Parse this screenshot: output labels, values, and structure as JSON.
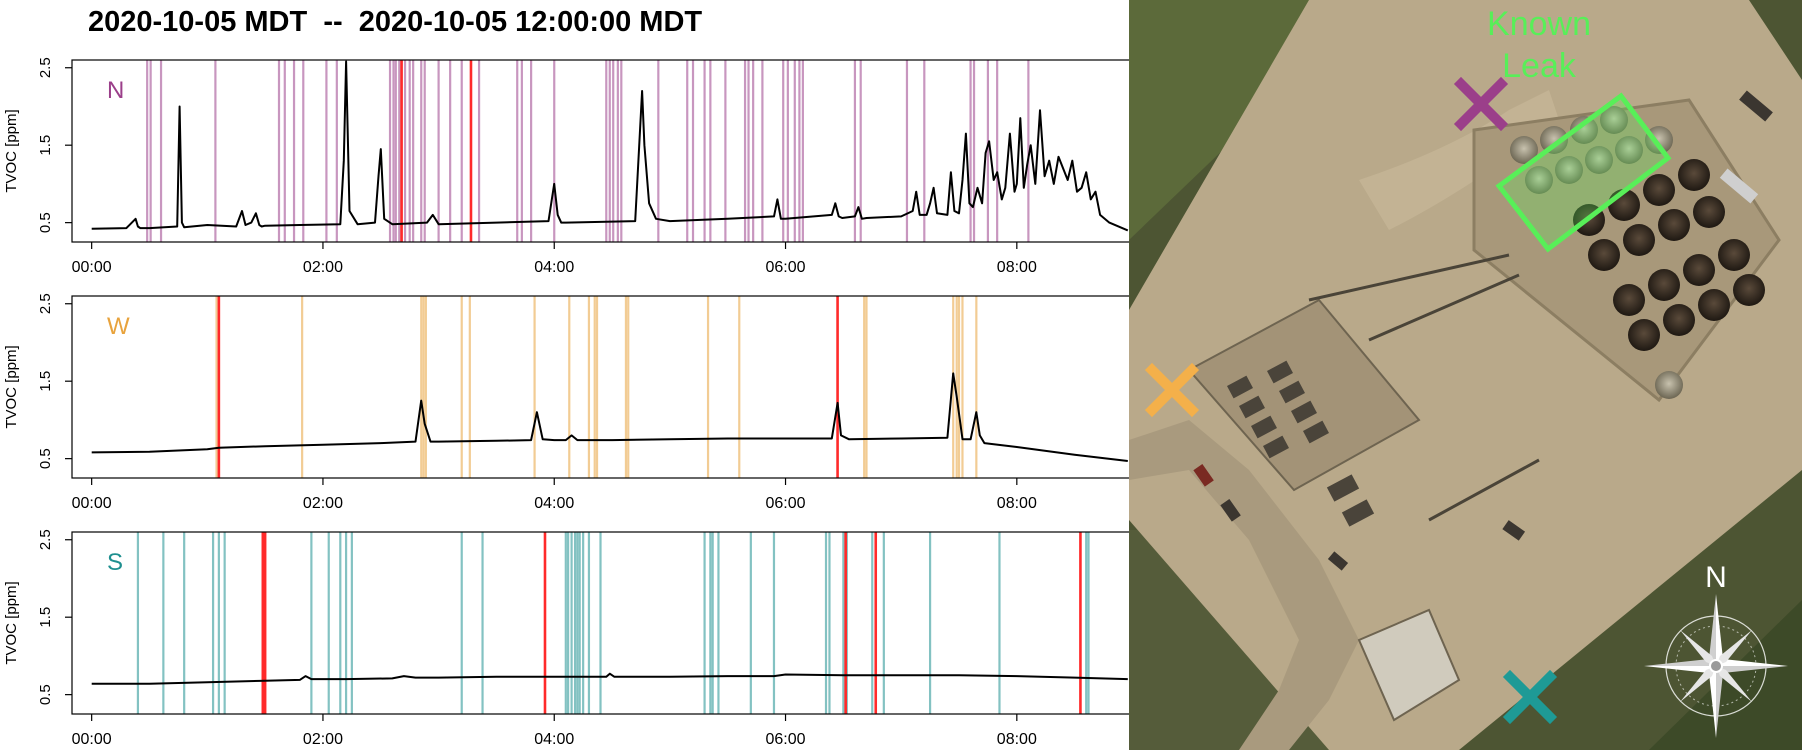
{
  "header": {
    "title": "2020-10-05 MDT  --  2020-10-05 12:00:00 MDT"
  },
  "colors": {
    "north": "#9b3f8a",
    "west": "#e8a33d",
    "south": "#1e8f8f",
    "alert": "#ff2a2a",
    "leak": "#58ef58"
  },
  "map": {
    "leak_label_line1": "Known",
    "leak_label_line2": "Leak",
    "compass_letter": "N",
    "markers": [
      {
        "id": "north",
        "color_key": "north",
        "icon": "x-marker-icon"
      },
      {
        "id": "west",
        "color_key": "west",
        "icon": "x-marker-icon"
      },
      {
        "id": "south",
        "color_key": "south",
        "icon": "x-marker-icon"
      }
    ]
  },
  "chart_data": [
    {
      "type": "line",
      "panel_label": "N",
      "color_key": "north",
      "ylabel": "TVOC [ppm]",
      "yticks": [
        "0.5",
        "1.5",
        "2.5"
      ],
      "ylim": [
        0.25,
        2.6
      ],
      "xlim": [
        -0.17,
        8.97
      ],
      "xticks": [
        "00:00",
        "02:00",
        "04:00",
        "06:00",
        "08:00"
      ],
      "x_unit": "hours since 00:00 MDT",
      "wind_lines": [
        0.48,
        0.51,
        0.6,
        1.07,
        1.62,
        1.67,
        1.75,
        1.83,
        2.03,
        2.12,
        2.58,
        2.61,
        2.63,
        2.66,
        2.71,
        2.75,
        2.78,
        2.85,
        2.88,
        3.0,
        3.1,
        3.2,
        3.35,
        3.68,
        3.72,
        3.8,
        4.0,
        4.45,
        4.48,
        4.51,
        4.55,
        4.58,
        4.9,
        5.15,
        5.2,
        5.3,
        5.35,
        5.48,
        5.65,
        5.68,
        5.72,
        5.8,
        5.98,
        6.02,
        6.08,
        6.12,
        6.15,
        6.6,
        6.65,
        7.05,
        7.2,
        7.6,
        7.63,
        7.75,
        7.83,
        8.1
      ],
      "alert_lines": [
        2.68,
        3.28
      ],
      "series": [
        {
          "x": [
            0.0,
            0.3,
            0.38,
            0.4,
            0.42,
            0.5,
            0.74,
            0.76,
            0.78,
            0.8,
            1.0,
            1.25,
            1.3,
            1.33,
            1.38,
            1.42,
            1.45,
            1.47,
            1.5,
            1.8,
            2.15,
            2.18,
            2.2,
            2.23,
            2.3,
            2.45,
            2.48,
            2.5,
            2.53,
            2.6,
            2.9,
            2.95,
            3.0,
            3.5,
            3.95,
            4.0,
            4.03,
            4.06,
            4.1,
            4.7,
            4.76,
            4.78,
            4.82,
            4.88,
            5.0,
            5.5,
            5.9,
            5.93,
            5.96,
            6.0,
            6.4,
            6.43,
            6.46,
            6.49,
            6.6,
            6.63,
            6.66,
            6.7,
            7.0,
            7.1,
            7.13,
            7.16,
            7.22,
            7.25,
            7.28,
            7.31,
            7.4,
            7.43,
            7.46,
            7.5,
            7.53,
            7.56,
            7.59,
            7.62,
            7.66,
            7.7,
            7.73,
            7.76,
            7.8,
            7.83,
            7.87,
            7.9,
            7.94,
            7.98,
            8.0,
            8.03,
            8.06,
            8.09,
            8.12,
            8.16,
            8.2,
            8.24,
            8.28,
            8.32,
            8.36,
            8.4,
            8.44,
            8.48,
            8.52,
            8.56,
            8.6,
            8.64,
            8.68,
            8.72,
            8.8,
            8.96
          ],
          "y": [
            0.42,
            0.43,
            0.55,
            0.45,
            0.43,
            0.43,
            0.45,
            2.0,
            0.5,
            0.44,
            0.47,
            0.45,
            0.65,
            0.47,
            0.5,
            0.62,
            0.47,
            0.45,
            0.46,
            0.47,
            0.48,
            1.3,
            2.58,
            0.65,
            0.48,
            0.5,
            1.1,
            1.45,
            0.55,
            0.48,
            0.5,
            0.6,
            0.48,
            0.5,
            0.52,
            1.0,
            0.6,
            0.5,
            0.5,
            0.52,
            2.2,
            1.5,
            0.75,
            0.55,
            0.52,
            0.55,
            0.58,
            0.8,
            0.55,
            0.55,
            0.6,
            0.75,
            0.58,
            0.56,
            0.58,
            0.7,
            0.55,
            0.56,
            0.58,
            0.65,
            0.9,
            0.6,
            0.6,
            0.75,
            0.95,
            0.62,
            0.6,
            1.15,
            0.65,
            0.62,
            1.05,
            1.65,
            0.75,
            0.7,
            0.95,
            0.75,
            1.4,
            1.55,
            1.05,
            1.15,
            0.8,
            0.95,
            1.65,
            0.9,
            1.0,
            1.85,
            0.95,
            1.25,
            1.5,
            1.0,
            1.95,
            1.1,
            1.3,
            1.0,
            1.35,
            1.2,
            1.05,
            1.3,
            0.9,
            0.95,
            1.15,
            0.8,
            0.9,
            0.6,
            0.5,
            0.4
          ]
        }
      ]
    },
    {
      "type": "line",
      "panel_label": "W",
      "color_key": "west",
      "ylabel": "TVOC [ppm]",
      "yticks": [
        "0.5",
        "1.5",
        "2.5"
      ],
      "ylim": [
        0.25,
        2.6
      ],
      "xlim": [
        -0.17,
        8.97
      ],
      "xticks": [
        "00:00",
        "02:00",
        "04:00",
        "06:00",
        "08:00"
      ],
      "x_unit": "hours since 00:00 MDT",
      "wind_lines": [
        1.08,
        1.82,
        2.85,
        2.87,
        2.89,
        3.2,
        3.27,
        3.83,
        4.13,
        4.3,
        4.35,
        4.37,
        4.62,
        4.64,
        5.33,
        5.6,
        6.68,
        6.7,
        7.45,
        7.48,
        7.5,
        7.53,
        7.65
      ],
      "alert_lines": [
        1.1,
        6.45
      ],
      "series": [
        {
          "x": [
            0.0,
            0.5,
            1.0,
            1.1,
            1.5,
            2.0,
            2.5,
            2.8,
            2.85,
            2.88,
            2.93,
            3.0,
            3.5,
            3.8,
            3.85,
            3.9,
            4.0,
            4.1,
            4.15,
            4.2,
            4.5,
            5.0,
            5.5,
            6.0,
            6.4,
            6.45,
            6.48,
            6.55,
            7.0,
            7.4,
            7.45,
            7.48,
            7.53,
            7.6,
            7.65,
            7.68,
            7.72,
            8.0,
            8.5,
            8.96
          ],
          "y": [
            0.58,
            0.59,
            0.62,
            0.64,
            0.66,
            0.68,
            0.7,
            0.72,
            1.25,
            0.95,
            0.72,
            0.72,
            0.73,
            0.74,
            1.1,
            0.75,
            0.74,
            0.74,
            0.8,
            0.74,
            0.74,
            0.75,
            0.76,
            0.76,
            0.76,
            1.22,
            0.8,
            0.75,
            0.76,
            0.77,
            1.6,
            1.3,
            0.75,
            0.75,
            1.1,
            0.8,
            0.7,
            0.65,
            0.55,
            0.47
          ]
        }
      ]
    },
    {
      "type": "line",
      "panel_label": "S",
      "color_key": "south",
      "ylabel": "TVOC [ppm]",
      "yticks": [
        "0.5",
        "1.5",
        "2.5"
      ],
      "ylim": [
        0.25,
        2.6
      ],
      "xlim": [
        -0.17,
        8.97
      ],
      "xticks": [
        "00:00",
        "02:00",
        "04:00",
        "06:00",
        "08:00"
      ],
      "x_unit": "hours since 00:00 MDT",
      "wind_lines": [
        0.4,
        0.62,
        0.8,
        1.05,
        1.1,
        1.15,
        1.9,
        2.05,
        2.15,
        2.2,
        2.25,
        3.2,
        3.38,
        4.1,
        4.12,
        4.15,
        4.18,
        4.2,
        4.22,
        4.25,
        4.3,
        4.4,
        5.3,
        5.35,
        5.37,
        5.42,
        5.7,
        5.9,
        6.35,
        6.38,
        6.5,
        6.53,
        6.75,
        6.85,
        7.25,
        7.85,
        8.6,
        8.62
      ],
      "alert_lines": [
        1.48,
        1.5,
        3.92,
        6.52,
        6.78,
        8.55
      ],
      "series": [
        {
          "x": [
            0.0,
            0.5,
            1.0,
            1.5,
            1.8,
            1.85,
            1.9,
            2.2,
            2.6,
            2.7,
            2.8,
            3.0,
            3.5,
            4.0,
            4.45,
            4.48,
            4.52,
            5.0,
            5.5,
            5.9,
            6.0,
            6.5,
            7.0,
            7.5,
            8.0,
            8.5,
            8.96
          ],
          "y": [
            0.64,
            0.64,
            0.66,
            0.68,
            0.69,
            0.74,
            0.7,
            0.7,
            0.71,
            0.74,
            0.72,
            0.72,
            0.73,
            0.73,
            0.73,
            0.77,
            0.73,
            0.73,
            0.74,
            0.74,
            0.76,
            0.75,
            0.75,
            0.75,
            0.74,
            0.72,
            0.7
          ]
        }
      ]
    }
  ]
}
